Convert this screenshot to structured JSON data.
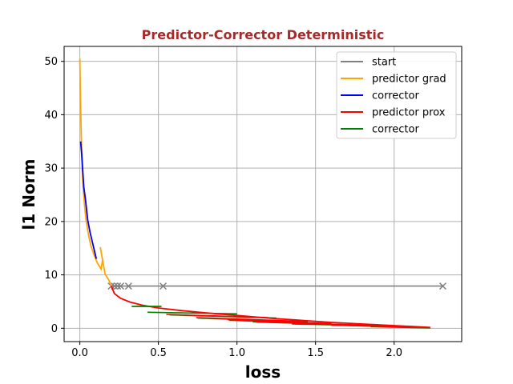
{
  "chart_data": {
    "type": "line",
    "title": "Predictor-Corrector Deterministic",
    "xlabel": "loss",
    "ylabel": "l1 Norm",
    "xlim": [
      -0.1,
      2.43
    ],
    "ylim": [
      -2.5,
      52.8
    ],
    "xticks": [
      0.0,
      0.5,
      1.0,
      1.5,
      2.0
    ],
    "xtick_labels": [
      "0.0",
      "0.5",
      "1.0",
      "1.5",
      "2.0"
    ],
    "yticks": [
      0,
      10,
      20,
      30,
      40,
      50
    ],
    "ytick_labels": [
      "0",
      "10",
      "20",
      "30",
      "40",
      "50"
    ],
    "grid": true,
    "legend_position": "top-right",
    "series": [
      {
        "name": "start",
        "color": "#808080",
        "marker": "x",
        "points": [
          [
            0.2,
            7.9
          ],
          [
            0.22,
            7.9
          ],
          [
            0.24,
            7.9
          ],
          [
            0.26,
            7.9
          ],
          [
            0.31,
            7.9
          ],
          [
            0.53,
            7.9
          ],
          [
            2.31,
            7.9
          ]
        ]
      },
      {
        "name": "predictor grad",
        "color": "#ffa500",
        "points": [
          [
            0.0,
            50.5
          ],
          [
            0.003,
            45
          ],
          [
            0.006,
            40
          ],
          [
            0.01,
            35
          ],
          [
            0.015,
            30
          ],
          [
            0.022,
            26
          ],
          [
            0.03,
            23
          ],
          [
            0.04,
            20.2
          ],
          [
            0.055,
            17.5
          ],
          [
            0.07,
            15.5
          ],
          [
            0.09,
            13.8
          ],
          [
            0.11,
            12.3
          ],
          [
            0.135,
            11.1
          ],
          [
            0.145,
            12.8
          ],
          [
            0.13,
            15.2
          ],
          [
            0.16,
            10.2
          ],
          [
            0.185,
            9.0
          ],
          [
            0.2,
            7.9
          ]
        ]
      },
      {
        "name": "corrector",
        "color": "#0000ff",
        "points": [
          [
            0.005,
            35
          ],
          [
            0.012,
            32.5
          ],
          [
            0.018,
            29.8
          ],
          [
            0.025,
            26.5
          ],
          [
            0.035,
            24.3
          ],
          [
            0.05,
            20.3
          ],
          [
            0.065,
            18.0
          ],
          [
            0.105,
            13.0
          ]
        ]
      },
      {
        "name": "predictor prox",
        "color": "#ff0000",
        "points": [
          [
            0.2,
            7.9
          ],
          [
            0.22,
            6.5
          ],
          [
            0.26,
            5.6
          ],
          [
            0.32,
            4.9
          ],
          [
            0.4,
            4.3
          ],
          [
            0.5,
            3.8
          ],
          [
            0.65,
            3.3
          ],
          [
            0.8,
            2.9
          ],
          [
            1.0,
            2.4
          ],
          [
            1.2,
            1.9
          ],
          [
            1.4,
            1.5
          ],
          [
            1.6,
            1.1
          ],
          [
            1.8,
            0.8
          ],
          [
            2.0,
            0.5
          ],
          [
            2.23,
            0.15
          ]
        ]
      },
      {
        "name": "corrector",
        "color": "#008000",
        "points": [
          [
            0.33,
            4.1
          ],
          [
            0.52,
            4.1
          ]
        ]
      }
    ],
    "extra_segments": [
      {
        "color": "#008000",
        "points": [
          [
            0.43,
            3.0
          ],
          [
            1.0,
            2.7
          ]
        ]
      },
      {
        "color": "#008000",
        "points": [
          [
            0.57,
            2.5
          ],
          [
            1.25,
            1.9
          ]
        ]
      },
      {
        "color": "#008000",
        "points": [
          [
            0.75,
            1.9
          ],
          [
            1.45,
            1.2
          ]
        ]
      },
      {
        "color": "#008000",
        "points": [
          [
            0.95,
            1.5
          ],
          [
            1.6,
            0.8
          ]
        ]
      },
      {
        "color": "#008000",
        "points": [
          [
            1.1,
            1.2
          ],
          [
            1.75,
            0.6
          ]
        ]
      },
      {
        "color": "#008000",
        "points": [
          [
            1.35,
            0.8
          ],
          [
            1.95,
            0.4
          ]
        ]
      },
      {
        "color": "#008000",
        "points": [
          [
            1.6,
            0.6
          ],
          [
            2.1,
            0.2
          ]
        ]
      },
      {
        "color": "#008000",
        "points": [
          [
            1.85,
            0.3
          ],
          [
            2.23,
            0.05
          ]
        ]
      },
      {
        "color": "#ff0000",
        "points": [
          [
            0.55,
            2.6
          ],
          [
            1.2,
            2.0
          ]
        ]
      },
      {
        "color": "#ff0000",
        "points": [
          [
            0.74,
            2.0
          ],
          [
            1.4,
            1.3
          ]
        ]
      },
      {
        "color": "#ff0000",
        "points": [
          [
            0.94,
            1.6
          ],
          [
            1.6,
            0.9
          ]
        ]
      },
      {
        "color": "#ff0000",
        "points": [
          [
            1.12,
            1.2
          ],
          [
            1.8,
            0.6
          ]
        ]
      },
      {
        "color": "#ff0000",
        "points": [
          [
            1.36,
            0.9
          ],
          [
            2.0,
            0.4
          ]
        ]
      },
      {
        "color": "#ff0000",
        "points": [
          [
            1.6,
            0.6
          ],
          [
            2.15,
            0.2
          ]
        ]
      }
    ]
  }
}
